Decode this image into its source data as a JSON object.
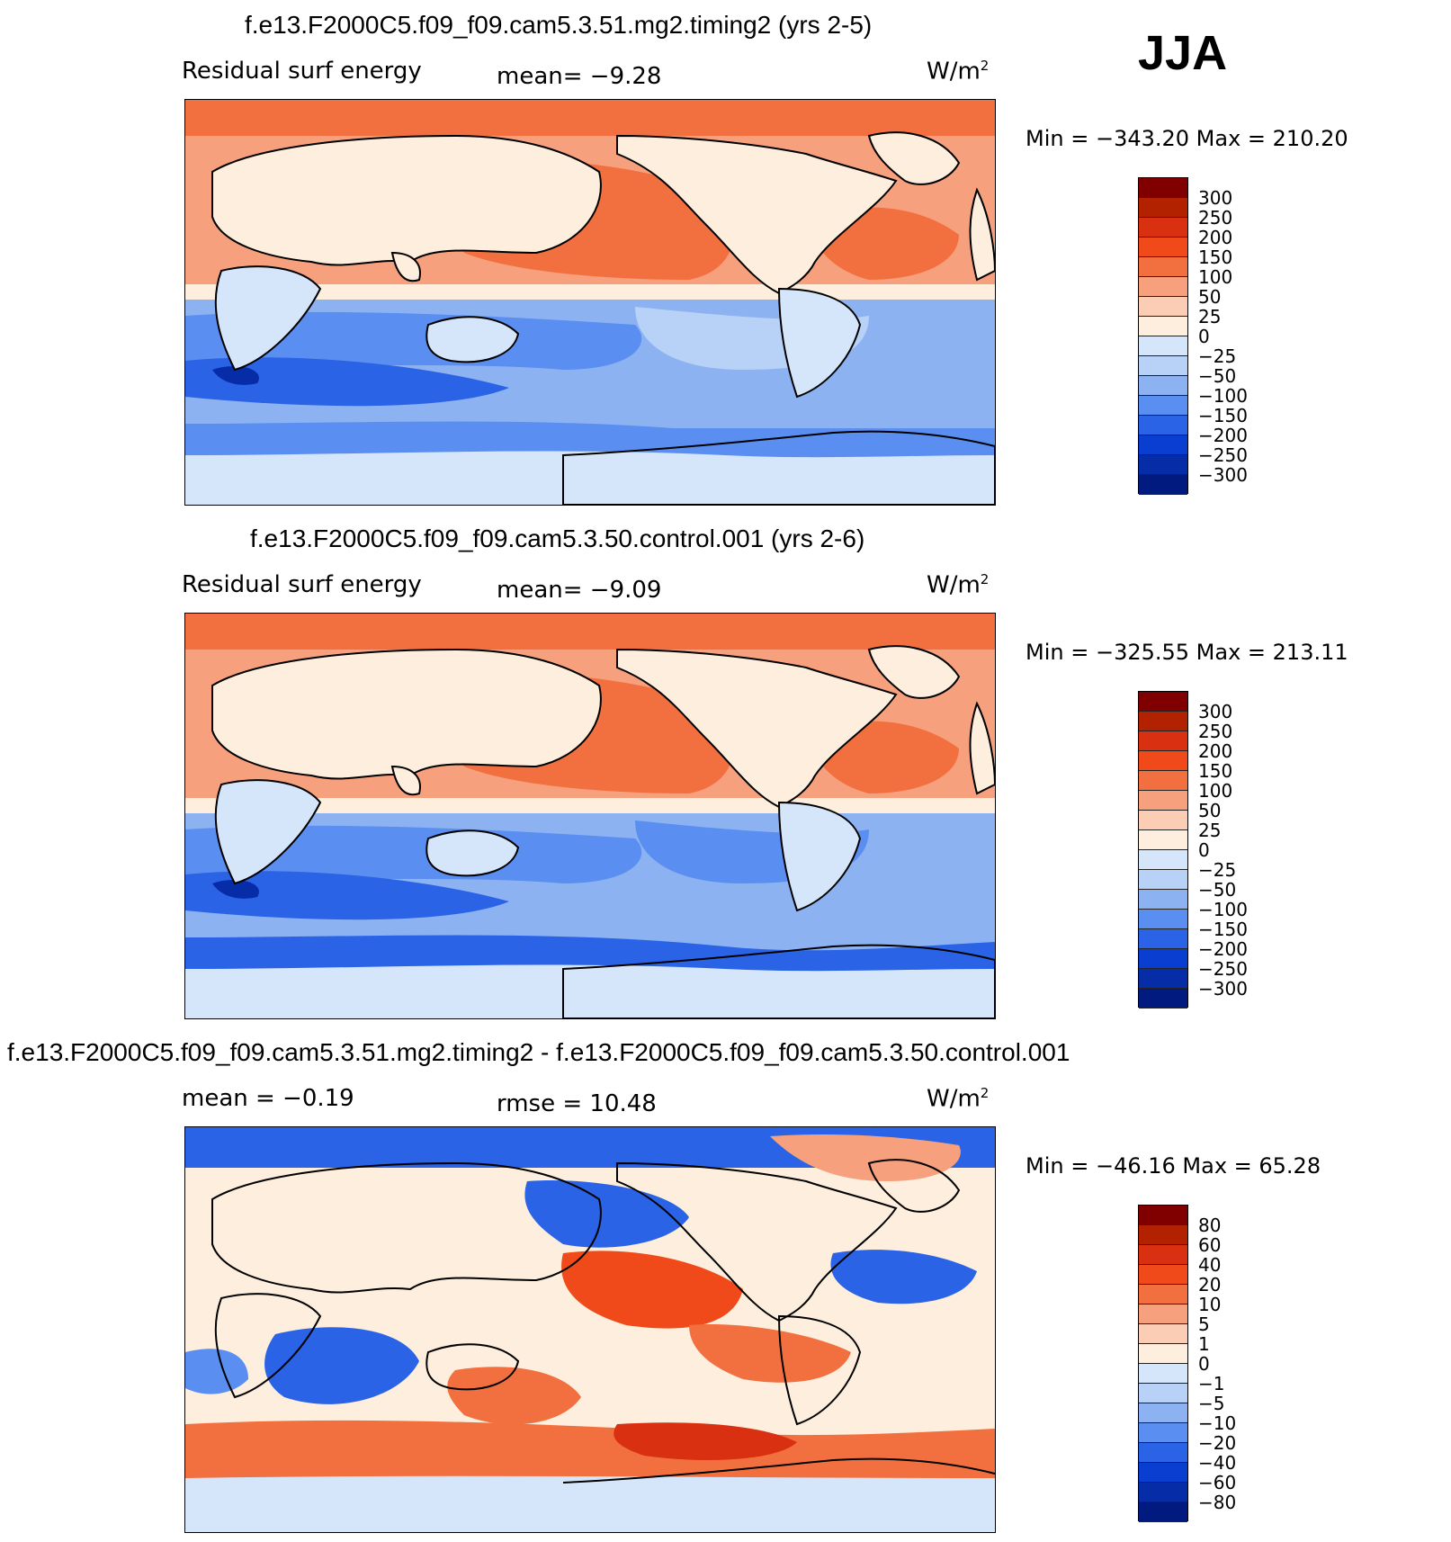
{
  "season": "JJA",
  "panels": [
    {
      "title": "f.e13.F2000C5.f09_f09.cam5.3.51.mg2.timing2 (yrs 2-5)",
      "variable": "Residual surf energy",
      "stat": "mean=   −9.28",
      "units": "W/m",
      "units_exp": "2",
      "minmax": "Min  =  −343.20  Max  =  210.20",
      "colorbar_levels": [
        "300",
        "250",
        "200",
        "150",
        "100",
        "50",
        "25",
        "0",
        "−25",
        "−50",
        "−100",
        "−150",
        "−200",
        "−250",
        "−300"
      ]
    },
    {
      "title": "f.e13.F2000C5.f09_f09.cam5.3.50.control.001 (yrs 2-6)",
      "variable": "Residual surf energy",
      "stat": "mean=   −9.09",
      "units": "W/m",
      "units_exp": "2",
      "minmax": "Min  =  −325.55  Max  =  213.11",
      "colorbar_levels": [
        "300",
        "250",
        "200",
        "150",
        "100",
        "50",
        "25",
        "0",
        "−25",
        "−50",
        "−100",
        "−150",
        "−200",
        "−250",
        "−300"
      ]
    },
    {
      "title": "f.e13.F2000C5.f09_f09.cam5.3.51.mg2.timing2 - f.e13.F2000C5.f09_f09.cam5.3.50.control.001",
      "variable": "mean  =   −0.19",
      "stat": "rmse  =    10.48",
      "units": "W/m",
      "units_exp": "2",
      "minmax": "Min  =  −46.16  Max  =    65.28",
      "colorbar_levels": [
        "80",
        "60",
        "40",
        "20",
        "10",
        "5",
        "1",
        "0",
        "−1",
        "−5",
        "−10",
        "−20",
        "−40",
        "−60",
        "−80"
      ]
    }
  ],
  "colors": {
    "scale": [
      "#800000",
      "#b22200",
      "#d83010",
      "#f04a1a",
      "#f2703f",
      "#f7a07d",
      "#fccdb5",
      "#fdeedd",
      "#d6e6fa",
      "#b7d1f7",
      "#8cb2f2",
      "#5a8ef0",
      "#2a63e6",
      "#0a3ed0",
      "#062ca8",
      "#001a80"
    ]
  }
}
